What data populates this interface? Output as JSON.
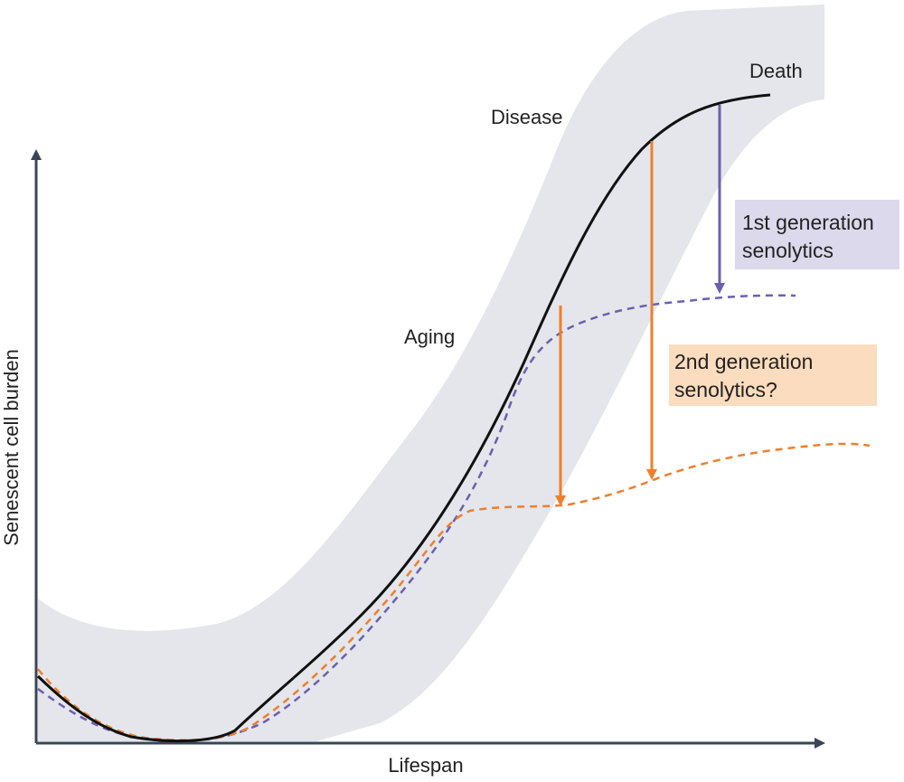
{
  "axes": {
    "y_title": "Senescent cell burden",
    "x_title": "Lifespan"
  },
  "annotations": {
    "death": "Death",
    "disease": "Disease",
    "aging": "Aging"
  },
  "callouts": {
    "first_gen": {
      "line1": "1st generation",
      "line2": "senolytics"
    },
    "second_gen": {
      "line1": "2nd generation",
      "line2": "senolytics?"
    }
  },
  "colors": {
    "band": "#e4e6eb",
    "main_curve": "#111111",
    "axis": "#3a4556",
    "first_gen": "#6b5fb0",
    "first_gen_box": "#dcd9ec",
    "second_gen": "#ee7f2d",
    "second_gen_box": "#fbdcbe"
  }
}
